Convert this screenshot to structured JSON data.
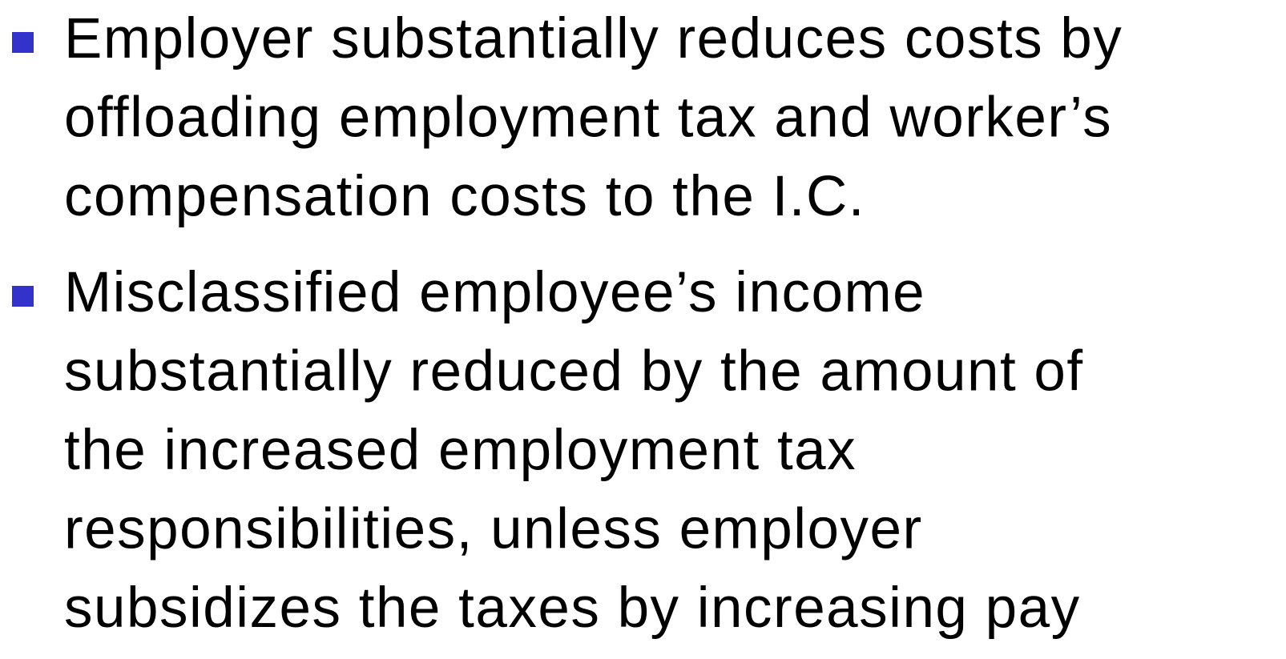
{
  "bullets": [
    {
      "lines": [
        "Employer substantially reduces costs by",
        "offloading employment tax and worker’s",
        "compensation costs to the I.C."
      ]
    },
    {
      "lines": [
        "Misclassified employee’s income",
        "substantially reduced by the amount of",
        "the increased employment tax",
        "responsibilities, unless employer",
        "subsidizes the taxes by increasing pay"
      ]
    }
  ]
}
